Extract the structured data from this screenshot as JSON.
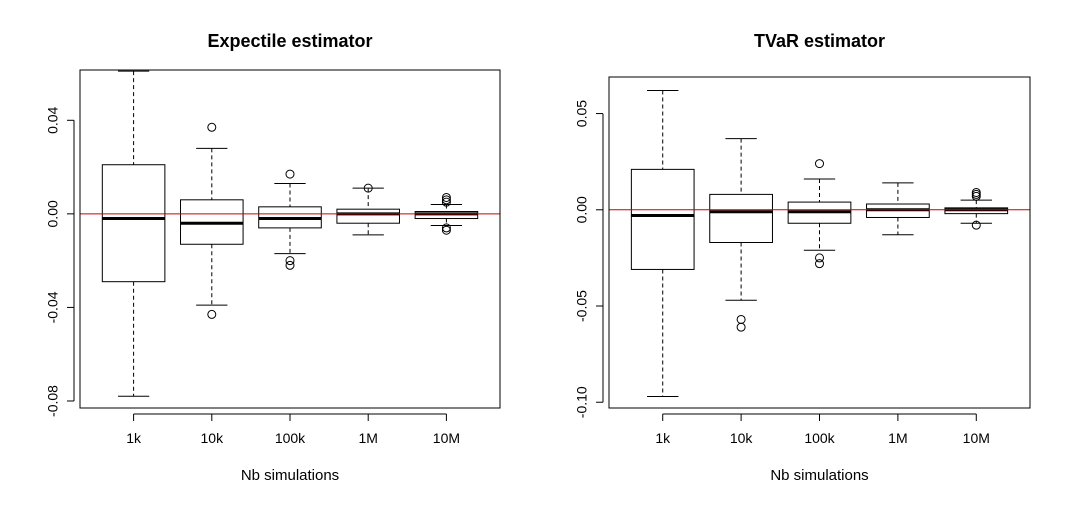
{
  "chart_data": [
    {
      "type": "boxplot",
      "title": "Expectile estimator",
      "xlabel": "Nb simulations",
      "ylabel": "",
      "categories": [
        "1k",
        "10k",
        "100k",
        "1M",
        "10M"
      ],
      "ylim": [
        -0.083,
        0.0615
      ],
      "yticks": [
        -0.08,
        -0.04,
        0.0,
        0.04
      ],
      "ytick_labels": [
        "-0.08",
        "-0.04",
        "0.00",
        "0.04"
      ],
      "reference_line": {
        "y": 0,
        "color": "#cc0000"
      },
      "boxes": [
        {
          "category": "1k",
          "whisker_low": -0.078,
          "q1": -0.029,
          "median": -0.002,
          "q3": 0.021,
          "whisker_high": 0.061,
          "outliers": []
        },
        {
          "category": "10k",
          "whisker_low": -0.039,
          "q1": -0.013,
          "median": -0.004,
          "q3": 0.006,
          "whisker_high": 0.028,
          "outliers": [
            0.037,
            -0.043
          ]
        },
        {
          "category": "100k",
          "whisker_low": -0.017,
          "q1": -0.006,
          "median": -0.002,
          "q3": 0.003,
          "whisker_high": 0.013,
          "outliers": [
            0.017,
            -0.02,
            -0.022
          ]
        },
        {
          "category": "1M",
          "whisker_low": -0.009,
          "q1": -0.004,
          "median": 0.0,
          "q3": 0.002,
          "whisker_high": 0.011,
          "outliers": [
            0.011
          ]
        },
        {
          "category": "10M",
          "whisker_low": -0.005,
          "q1": -0.002,
          "median": 0.0,
          "q3": 0.001,
          "whisker_high": 0.004,
          "outliers": [
            0.005,
            0.006,
            0.007,
            -0.006,
            -0.007
          ]
        }
      ]
    },
    {
      "type": "boxplot",
      "title": "TVaR estimator",
      "xlabel": "Nb simulations",
      "ylabel": "",
      "categories": [
        "1k",
        "10k",
        "100k",
        "1M",
        "10M"
      ],
      "ylim": [
        -0.103,
        0.069
      ],
      "yticks": [
        -0.1,
        -0.05,
        0.0,
        0.05
      ],
      "ytick_labels": [
        "-0.10",
        "-0.05",
        "0.00",
        "0.05"
      ],
      "reference_line": {
        "y": 0,
        "color": "#cc0000"
      },
      "boxes": [
        {
          "category": "1k",
          "whisker_low": -0.097,
          "q1": -0.031,
          "median": -0.003,
          "q3": 0.021,
          "whisker_high": 0.062,
          "outliers": []
        },
        {
          "category": "10k",
          "whisker_low": -0.047,
          "q1": -0.017,
          "median": -0.001,
          "q3": 0.008,
          "whisker_high": 0.037,
          "outliers": [
            -0.057,
            -0.061
          ]
        },
        {
          "category": "100k",
          "whisker_low": -0.021,
          "q1": -0.007,
          "median": -0.001,
          "q3": 0.004,
          "whisker_high": 0.016,
          "outliers": [
            0.024,
            -0.025,
            -0.028
          ]
        },
        {
          "category": "1M",
          "whisker_low": -0.013,
          "q1": -0.004,
          "median": 0.0,
          "q3": 0.003,
          "whisker_high": 0.014,
          "outliers": []
        },
        {
          "category": "10M",
          "whisker_low": -0.007,
          "q1": -0.002,
          "median": 0.0,
          "q3": 0.001,
          "whisker_high": 0.005,
          "outliers": [
            0.007,
            0.008,
            0.009,
            -0.008
          ]
        }
      ]
    }
  ]
}
